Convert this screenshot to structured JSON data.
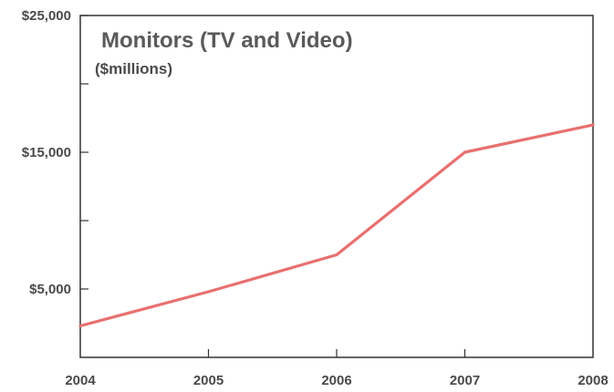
{
  "chart_data": {
    "type": "line",
    "title": "Monitors (TV and Video)",
    "subtitle": "($millions)",
    "x": [
      2004,
      2005,
      2006,
      2007,
      2008
    ],
    "x_tick_labels": [
      "2004",
      "2005",
      "2006",
      "2007",
      "2008"
    ],
    "y_tick_values": [
      25000,
      15000,
      5000
    ],
    "y_tick_labels": [
      "$25,000",
      "$15,000",
      "$5,000"
    ],
    "y_minor_ticks": [
      20000,
      10000
    ],
    "ylim": [
      0,
      25000
    ],
    "xlim": [
      2004,
      2008
    ],
    "grid": false,
    "series": [
      {
        "values": [
          2300,
          4800,
          7500,
          15000,
          17000
        ],
        "color": "#e87070"
      }
    ],
    "axis_color": "#333333"
  }
}
